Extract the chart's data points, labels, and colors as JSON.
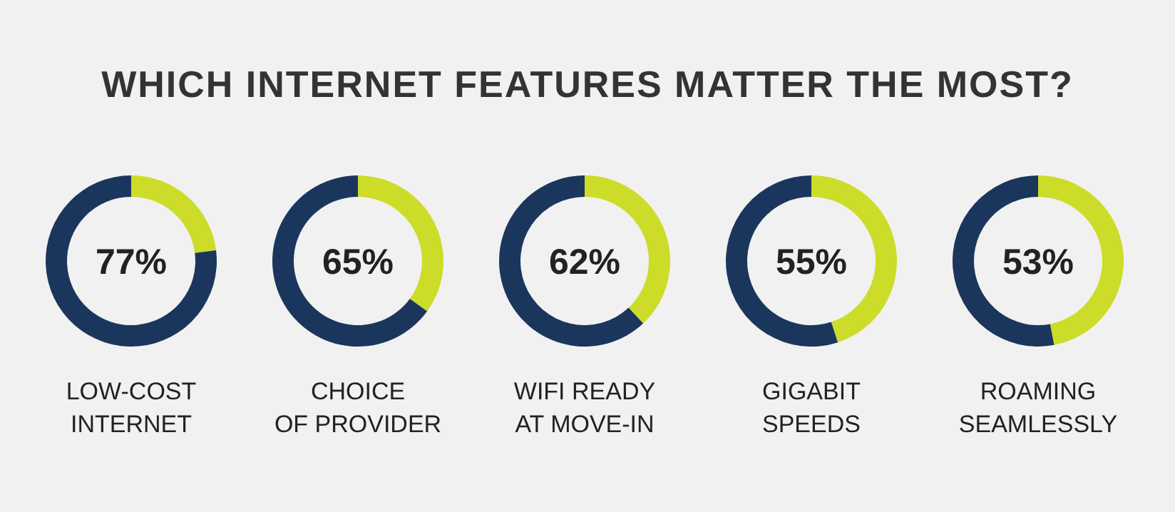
{
  "chart_data": [
    {
      "type": "donut",
      "title": "WHICH INTERNET FEATURES MATTER THE MOST?",
      "categories": [
        null,
        null
      ],
      "values": [
        23,
        77
      ],
      "colors": [
        "#cddc29",
        "#1b365d"
      ],
      "value_labels": [
        null,
        "77%"
      ],
      "xlabel": "LOW-COST\nINTERNET"
    },
    {
      "type": "donut",
      "categories": [
        null,
        null
      ],
      "values": [
        35,
        65
      ],
      "colors": [
        "#cddc29",
        "#1b365d"
      ],
      "value_labels": [
        null,
        "65%"
      ],
      "xlabel": "CHOICE\nOF PROVIDER"
    },
    {
      "type": "donut",
      "categories": [
        null,
        null
      ],
      "values": [
        38,
        62
      ],
      "colors": [
        "#cddc29",
        "#1b365d"
      ],
      "value_labels": [
        null,
        "62%"
      ],
      "xlabel": "WIFI READY\nAT MOVE-IN"
    },
    {
      "type": "donut",
      "categories": [
        null,
        null
      ],
      "values": [
        45,
        55
      ],
      "colors": [
        "#cddc29",
        "#1b365d"
      ],
      "value_labels": [
        null,
        "55%"
      ],
      "xlabel": "GIGABIT\nSPEEDS"
    },
    {
      "type": "donut",
      "categories": [
        null,
        null
      ],
      "values": [
        47,
        53
      ],
      "colors": [
        "#cddc29",
        "#1b365d"
      ],
      "value_labels": [
        null,
        "53%"
      ],
      "xlabel": "ROAMING\nSEAMLESSLY"
    }
  ]
}
